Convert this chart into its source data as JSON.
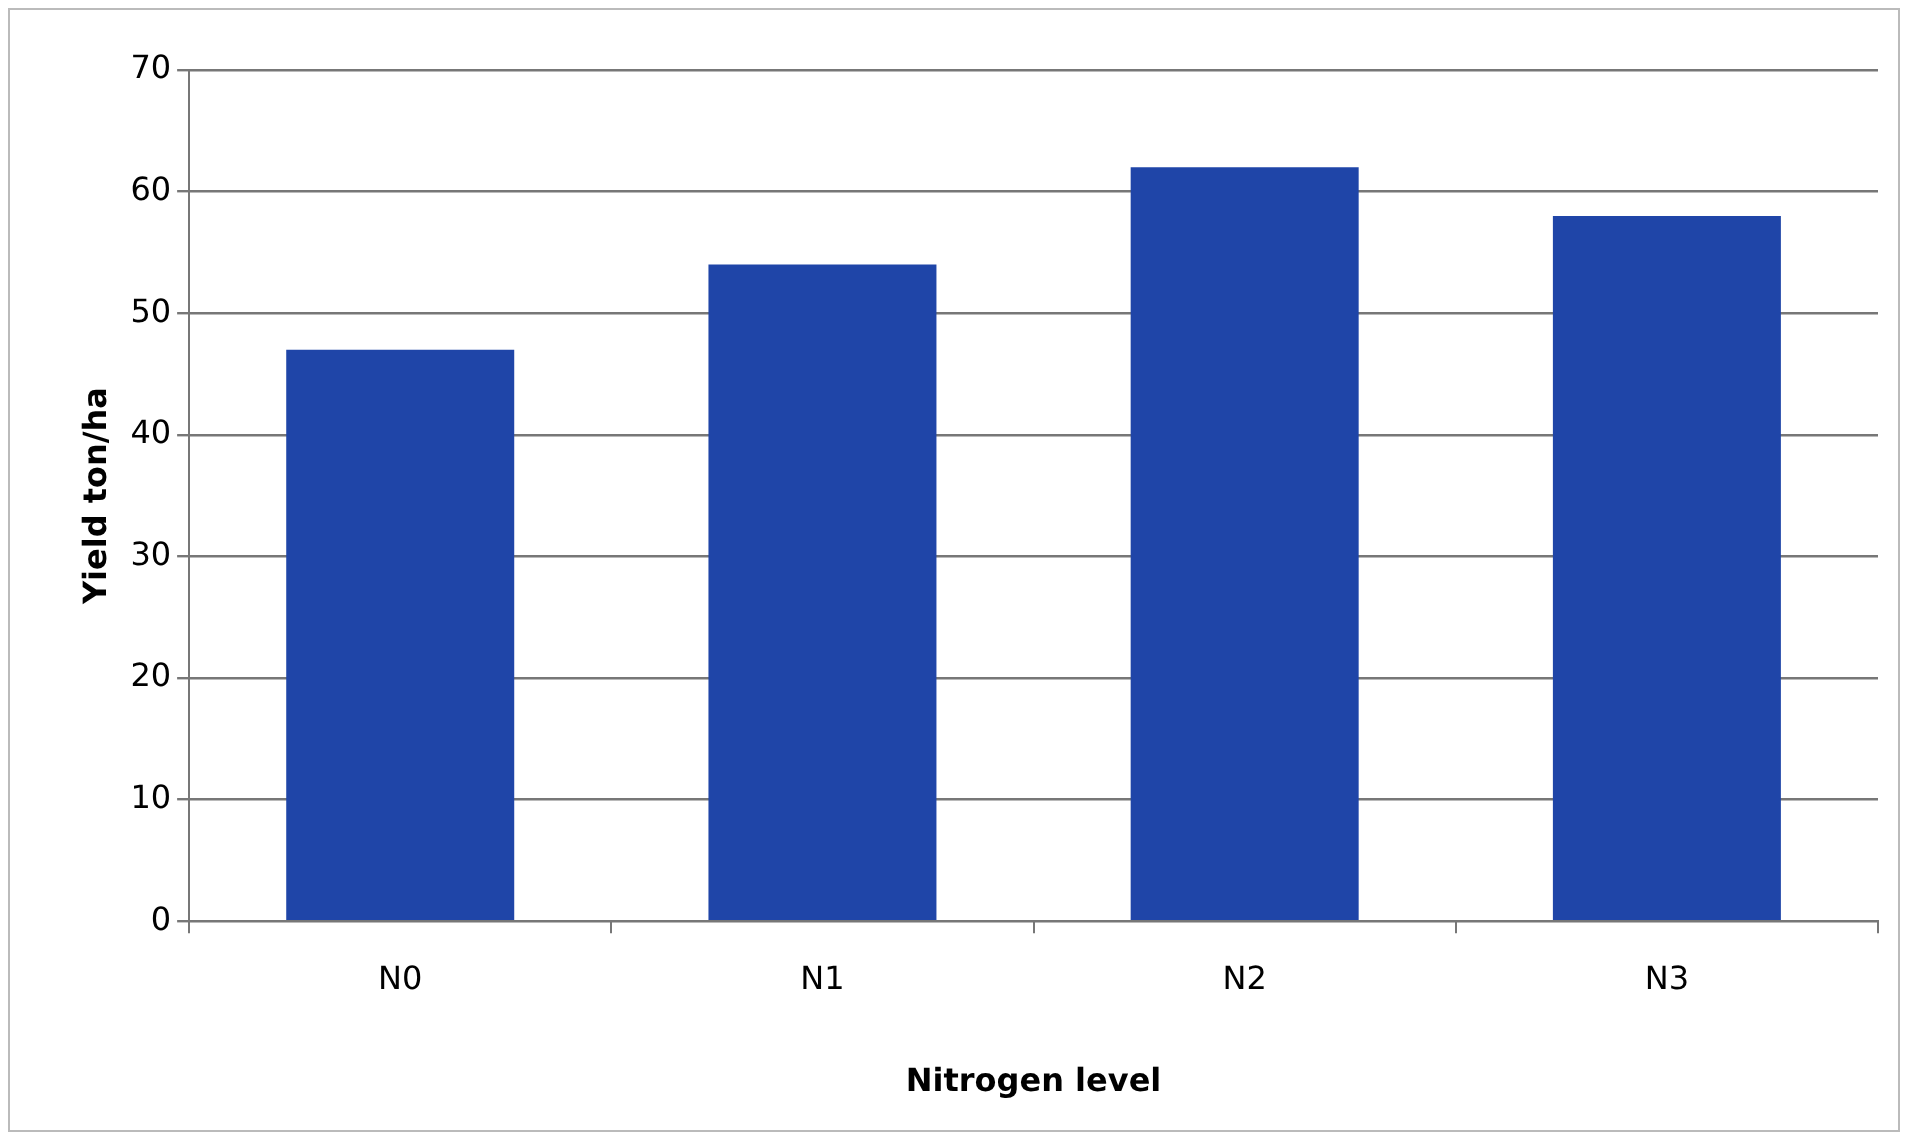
{
  "chart_data": {
    "type": "bar",
    "xlabel": "Nitrogen level",
    "ylabel": "Yield ton/ha",
    "categories": [
      "N0",
      "N1",
      "N2",
      "N3"
    ],
    "values": [
      47,
      54,
      62,
      58
    ],
    "color": "#1f45a8",
    "ylim": [
      0,
      70
    ],
    "yticks": [
      0,
      10,
      20,
      30,
      40,
      50,
      60,
      70
    ],
    "grid": "y"
  }
}
